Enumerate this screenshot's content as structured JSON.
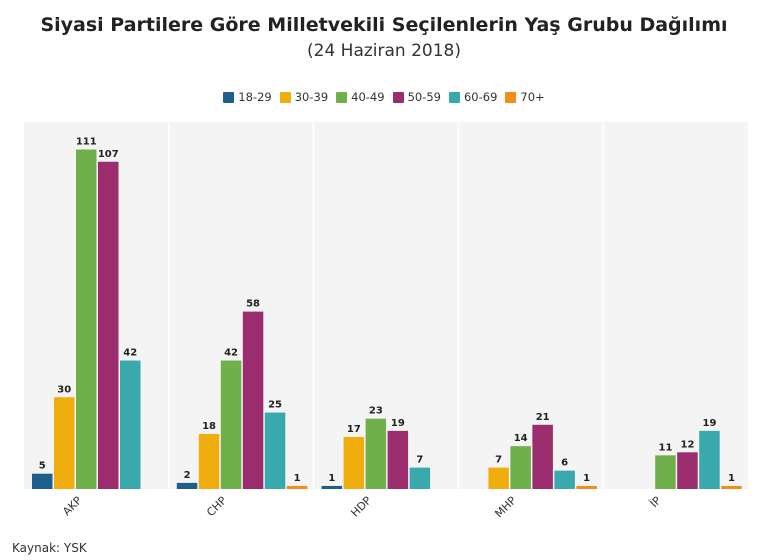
{
  "colors": {
    "18-29": "#1f5f8b",
    "30-39": "#f0ad0e",
    "40-49": "#6fb04a",
    "50-59": "#9b2c6e",
    "60-69": "#3aa9ad",
    "70+": "#f28c1b",
    "plot_bg": "#f4f4f4",
    "grid": "#ffffff"
  },
  "chart_data": {
    "type": "bar",
    "title": "Siyasi Partilere Göre Milletvekili Seçilenlerin Yaş Grubu Dağılımı",
    "subtitle": "(24 Haziran 2018)",
    "categories": [
      "AKP",
      "CHP",
      "HDP",
      "MHP",
      "İP"
    ],
    "series": [
      {
        "name": "18-29",
        "values": [
          5,
          2,
          1,
          null,
          null
        ]
      },
      {
        "name": "30-39",
        "values": [
          30,
          18,
          17,
          7,
          null
        ]
      },
      {
        "name": "40-49",
        "values": [
          111,
          42,
          23,
          14,
          11
        ]
      },
      {
        "name": "50-59",
        "values": [
          107,
          58,
          19,
          21,
          12
        ]
      },
      {
        "name": "60-69",
        "values": [
          42,
          25,
          7,
          6,
          19
        ]
      },
      {
        "name": "70+",
        "values": [
          null,
          1,
          null,
          1,
          1
        ]
      }
    ],
    "ylim": [
      0,
      120
    ],
    "legend_position": "top-center",
    "grid": true
  },
  "source": "Kaynak: YSK"
}
